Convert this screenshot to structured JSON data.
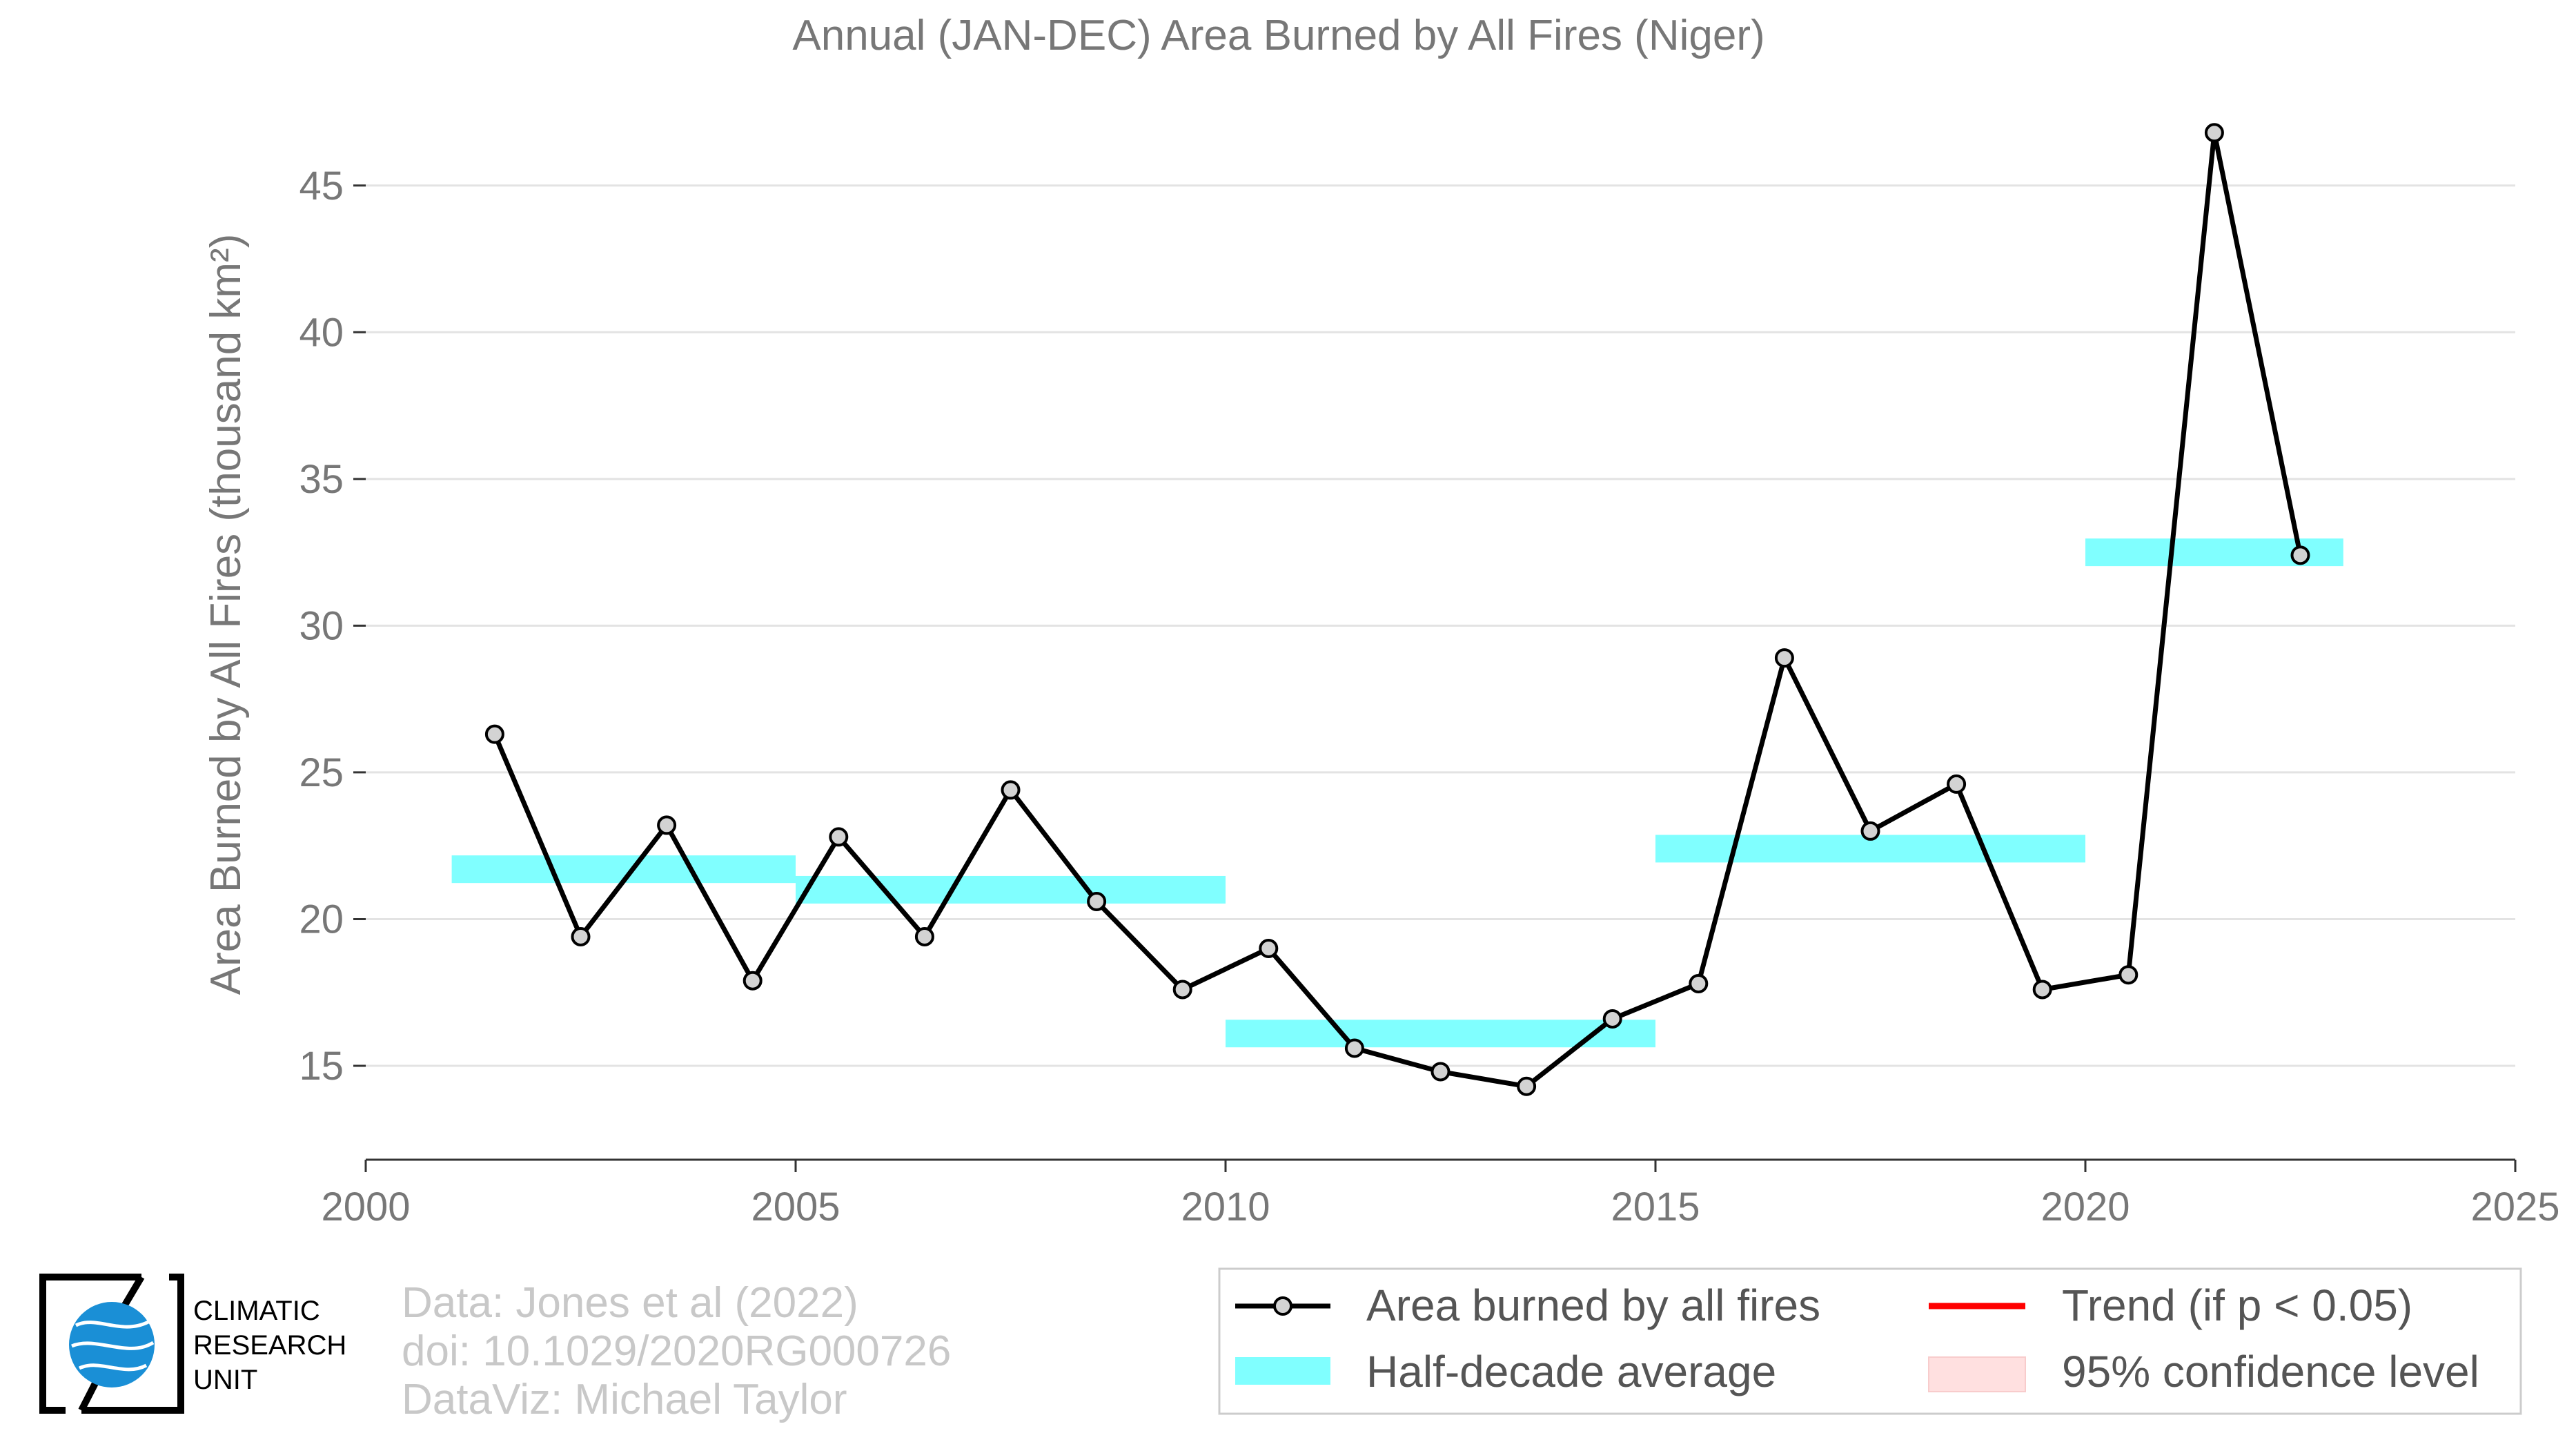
{
  "chart_data": {
    "type": "line",
    "title": "Annual (JAN-DEC) Area Burned by All Fires (Niger)",
    "ylabel": "Area Burned by All Fires (thousand km²)",
    "xlabel": "",
    "xlim": [
      2000,
      2025
    ],
    "ylim": [
      11.8,
      48.5
    ],
    "x_ticks": [
      2000,
      2005,
      2010,
      2015,
      2020,
      2025
    ],
    "y_ticks": [
      15,
      20,
      25,
      30,
      35,
      40,
      45
    ],
    "grid": "horizontal",
    "legend_position": "bottom-right",
    "series": [
      {
        "name": "Area burned by all fires",
        "color": "#000000",
        "marker_fill": "#d3d3d3",
        "x": [
          2001.5,
          2002.5,
          2003.5,
          2004.5,
          2005.5,
          2006.5,
          2007.5,
          2008.5,
          2009.5,
          2010.5,
          2011.5,
          2012.5,
          2013.5,
          2014.5,
          2015.5,
          2016.5,
          2017.5,
          2018.5,
          2019.5,
          2020.5,
          2021.5,
          2022.5
        ],
        "values": [
          26.3,
          19.4,
          23.2,
          17.9,
          22.8,
          19.4,
          24.4,
          20.6,
          17.6,
          19.0,
          15.6,
          14.8,
          14.3,
          16.6,
          17.8,
          28.9,
          23.0,
          24.6,
          17.6,
          18.1,
          46.8,
          32.4
        ]
      }
    ],
    "half_decade_averages": {
      "name": "Half-decade average",
      "color": "#80ffff",
      "segments": [
        {
          "x_start": 2001,
          "x_end": 2005,
          "value": 21.7
        },
        {
          "x_start": 2005,
          "x_end": 2010,
          "value": 21.0
        },
        {
          "x_start": 2010,
          "x_end": 2015,
          "value": 16.1
        },
        {
          "x_start": 2015,
          "x_end": 2020,
          "value": 22.4
        },
        {
          "x_start": 2020,
          "x_end": 2023,
          "value": 32.5
        }
      ]
    },
    "legend": [
      {
        "label": "Area burned by all fires",
        "kind": "line-marker",
        "color": "#000000"
      },
      {
        "label": "Trend (if p < 0.05)",
        "kind": "line",
        "color": "#ff0000"
      },
      {
        "label": "Half-decade average",
        "kind": "band",
        "color": "#80ffff"
      },
      {
        "label": "95% confidence level",
        "kind": "band",
        "color": "#ffe0e0"
      }
    ]
  },
  "credits": {
    "line1": "Data: Jones et al (2022)",
    "line2": "doi: 10.1029/2020RG000726",
    "line3": "DataViz: Michael Taylor"
  },
  "logo": {
    "line1": "CLIMATIC",
    "line2": "RESEARCH",
    "line3": "UNIT"
  }
}
